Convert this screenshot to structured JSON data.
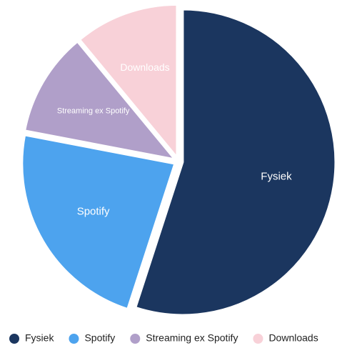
{
  "chart_data": {
    "type": "pie",
    "categories": [
      "Fysiek",
      "Spotify",
      "Streaming ex Spotify",
      "Downloads"
    ],
    "values": [
      55,
      23,
      11,
      11
    ],
    "colors": [
      "#1b365f",
      "#4da3ee",
      "#b09fc9",
      "#f8d1d8"
    ],
    "legend": "bottom"
  }
}
